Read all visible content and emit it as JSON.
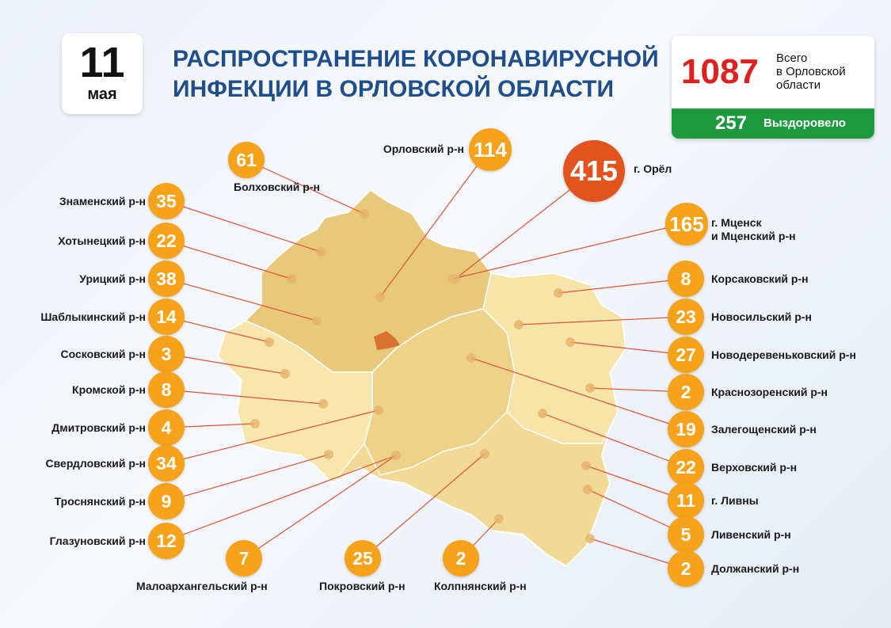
{
  "date": {
    "day": "11",
    "month": "мая"
  },
  "title": {
    "line1": "РАСПРОСТРАНЕНИЕ КОРОНАВИРУСНОЙ",
    "line2": "ИНФЕКЦИИ В ОРЛОВСКОЙ ОБЛАСТИ"
  },
  "totals": {
    "total": "1087",
    "total_label": [
      "Всего",
      "в Орловской",
      "области"
    ],
    "recovered": "257",
    "recovered_label": "Выздоровело"
  },
  "colors": {
    "title": "#1f4e8c",
    "total": "#e0201f",
    "recovered_bg": "#1e9a3e",
    "badge": "#f7a21b",
    "city_badge": "#e2531e"
  },
  "districts": [
    {
      "name": "Знаменский р-н",
      "count": "35"
    },
    {
      "name": "Хотынецкий р-н",
      "count": "22"
    },
    {
      "name": "Урицкий р-н",
      "count": "38"
    },
    {
      "name": "Шаблыкинский р-н",
      "count": "14"
    },
    {
      "name": "Сосковский р-н",
      "count": "3"
    },
    {
      "name": "Кромской р-н",
      "count": "8"
    },
    {
      "name": "Дмитровский р-н",
      "count": "4"
    },
    {
      "name": "Свердловский р-н",
      "count": "34"
    },
    {
      "name": "Троснянский р-н",
      "count": "9"
    },
    {
      "name": "Глазуновский р-н",
      "count": "12"
    },
    {
      "name": "Болховский р-н",
      "count": "61"
    },
    {
      "name": "Орловский р-н",
      "count": "114"
    },
    {
      "name": "г. Орёл",
      "count": "415"
    },
    {
      "name": "г. Мценск",
      "name2": "и Мценский р-н",
      "count": "165"
    },
    {
      "name": "Корсаковский р-н",
      "count": "8"
    },
    {
      "name": "Новосильский р-н",
      "count": "23"
    },
    {
      "name": "Новодеревеньковский р-н",
      "count": "27"
    },
    {
      "name": "Краснозоренский р-н",
      "count": "2"
    },
    {
      "name": "Залегощенский р-н",
      "count": "19"
    },
    {
      "name": "Верховский р-н",
      "count": "22"
    },
    {
      "name": "г. Ливны",
      "count": "11"
    },
    {
      "name": "Ливенский р-н",
      "count": "5"
    },
    {
      "name": "Должанский р-н",
      "count": "2"
    },
    {
      "name": "Малоархангельский р-н",
      "count": "7"
    },
    {
      "name": "Покровский р-н",
      "count": "25"
    },
    {
      "name": "Колпнянский р-н",
      "count": "2"
    }
  ]
}
